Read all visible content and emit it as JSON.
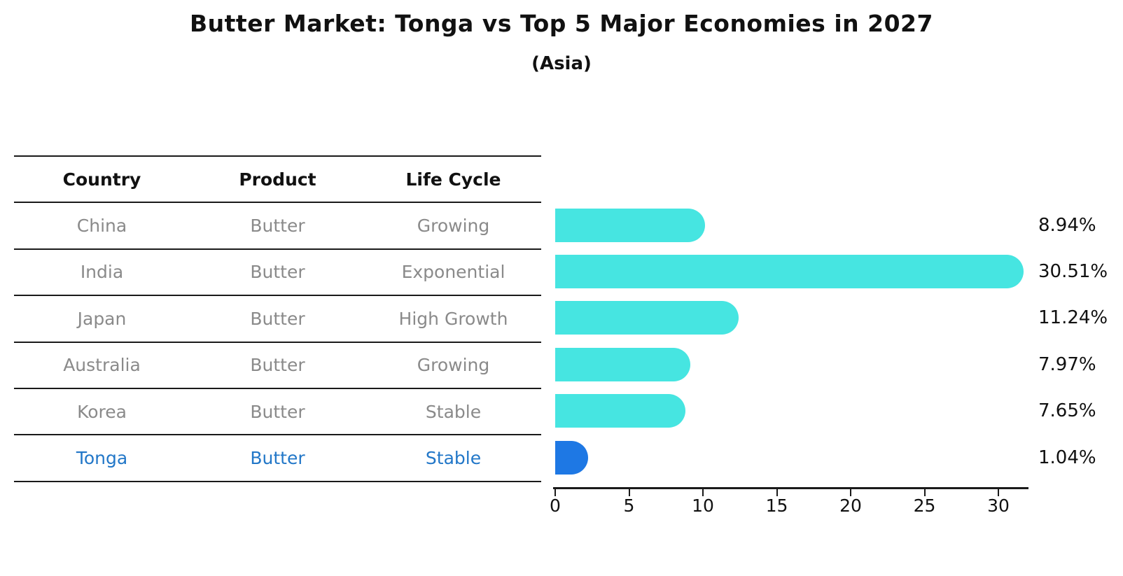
{
  "title": "Butter Market: Tonga vs Top 5 Major Economies in 2027",
  "subtitle": "(Asia)",
  "table": {
    "headers": [
      "Country",
      "Product",
      "Life Cycle"
    ],
    "rows": [
      {
        "country": "China",
        "product": "Butter",
        "life_cycle": "Growing",
        "highlight": false
      },
      {
        "country": "India",
        "product": "Butter",
        "life_cycle": "Exponential",
        "highlight": false
      },
      {
        "country": "Japan",
        "product": "Butter",
        "life_cycle": "High Growth",
        "highlight": false
      },
      {
        "country": "Australia",
        "product": "Butter",
        "life_cycle": "Growing",
        "highlight": false
      },
      {
        "country": "Korea",
        "product": "Butter",
        "life_cycle": "Stable",
        "highlight": false
      },
      {
        "country": "Tonga",
        "product": "Butter",
        "life_cycle": "Stable",
        "highlight": true
      }
    ]
  },
  "chart_data": {
    "type": "bar",
    "orientation": "horizontal",
    "title": "Butter Market: Tonga vs Top 5 Major Economies in 2027",
    "subtitle": "(Asia)",
    "categories": [
      "China",
      "India",
      "Japan",
      "Australia",
      "Korea",
      "Tonga"
    ],
    "values": [
      8.94,
      30.51,
      11.24,
      7.97,
      7.65,
      1.04
    ],
    "value_labels": [
      "8.94%",
      "30.51%",
      "11.24%",
      "7.97%",
      "7.65%",
      "1.04%"
    ],
    "x_ticks": [
      0,
      5,
      10,
      15,
      20,
      25,
      30
    ],
    "xlim": [
      0,
      32
    ],
    "grid": false,
    "legend": "none",
    "bar_color": "#46e5e1",
    "highlight_color": "#1e78e4",
    "highlight_index": 5,
    "highlight_text_color": "#2277c8"
  }
}
